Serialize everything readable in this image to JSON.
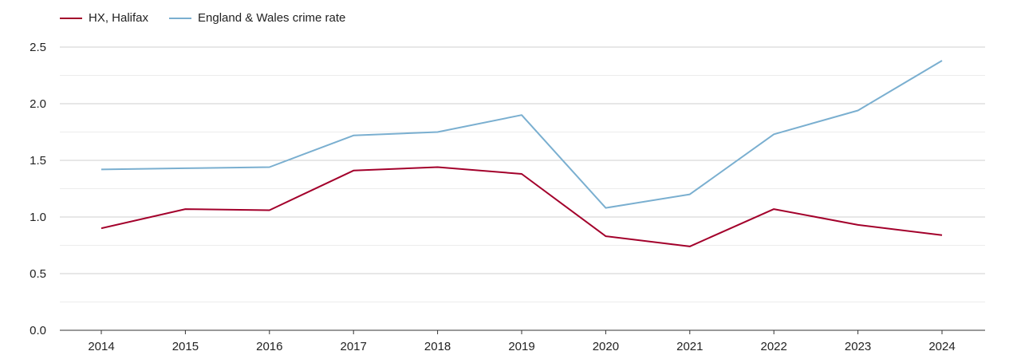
{
  "chart_data": {
    "type": "line",
    "title": "",
    "xlabel": "",
    "ylabel": "",
    "categories": [
      "2014",
      "2015",
      "2016",
      "2017",
      "2018",
      "2019",
      "2020",
      "2021",
      "2022",
      "2023",
      "2024"
    ],
    "ylim": [
      0,
      2.5
    ],
    "yticks": [
      "0.0",
      "0.5",
      "1.0",
      "1.5",
      "2.0",
      "2.5"
    ],
    "grid": true,
    "legend_position": "top-left",
    "series": [
      {
        "name": "HX, Halifax",
        "color": "#a3002b",
        "values": [
          0.9,
          1.07,
          1.06,
          1.41,
          1.44,
          1.38,
          0.83,
          0.74,
          1.07,
          0.93,
          0.84
        ]
      },
      {
        "name": "England & Wales crime rate",
        "color": "#7aafd0",
        "values": [
          1.42,
          1.43,
          1.44,
          1.72,
          1.75,
          1.9,
          1.08,
          1.2,
          1.73,
          1.94,
          2.38
        ]
      }
    ]
  }
}
